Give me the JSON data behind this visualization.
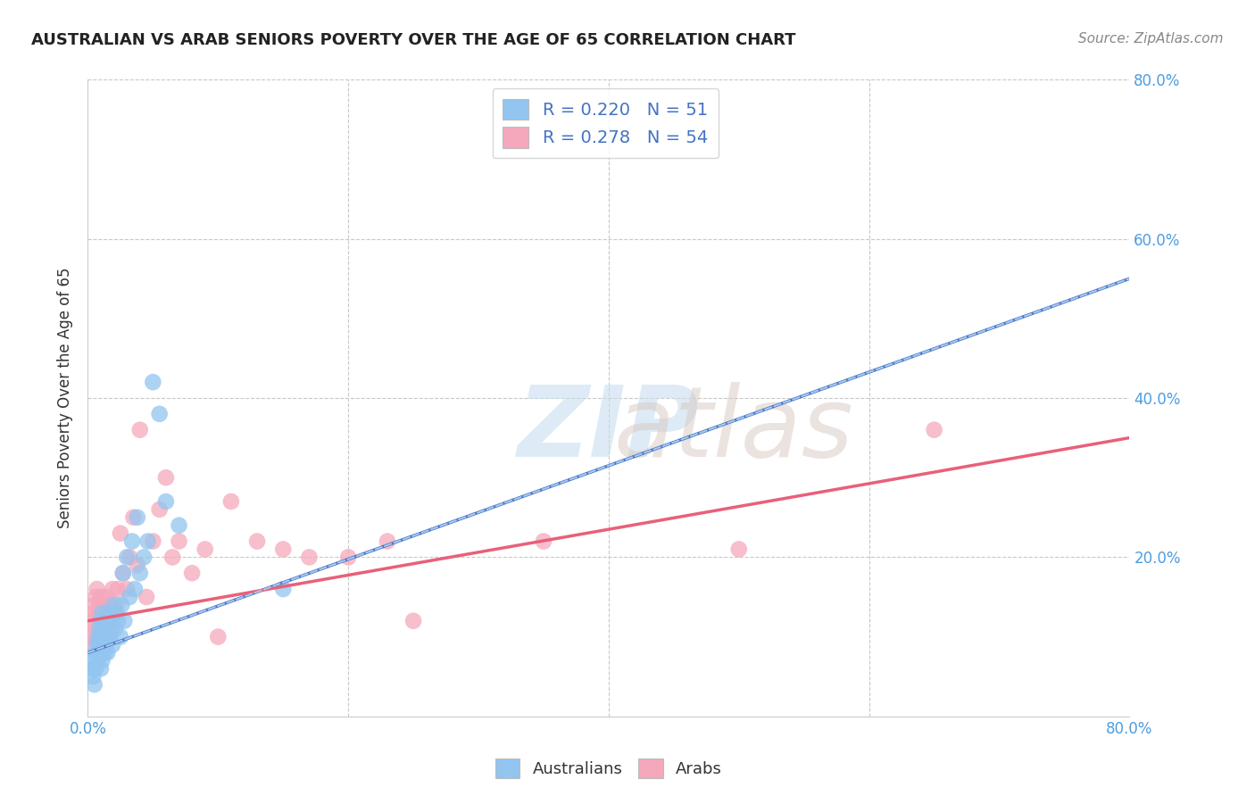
{
  "title": "AUSTRALIAN VS ARAB SENIORS POVERTY OVER THE AGE OF 65 CORRELATION CHART",
  "source": "Source: ZipAtlas.com",
  "ylabel": "Seniors Poverty Over the Age of 65",
  "xlim": [
    0.0,
    0.8
  ],
  "ylim": [
    0.0,
    0.8
  ],
  "xticks": [
    0.0,
    0.2,
    0.4,
    0.6,
    0.8
  ],
  "yticks": [
    0.2,
    0.4,
    0.6,
    0.8
  ],
  "xtick_labels": [
    "0.0%",
    "",
    "",
    "",
    "80.0%"
  ],
  "ytick_labels_right": [
    "20.0%",
    "40.0%",
    "60.0%",
    "80.0%"
  ],
  "background_color": "#ffffff",
  "grid_color": "#c8c8c8",
  "legend_R_australian": "0.220",
  "legend_N_australian": "51",
  "legend_R_arab": "0.278",
  "legend_N_arab": "54",
  "australian_color": "#92c5f0",
  "arab_color": "#f5a8bc",
  "trendline_australian_solid_color": "#4472c4",
  "trendline_australian_dashed_color": "#a8c8f0",
  "trendline_arab_color": "#e8607a",
  "australian_x": [
    0.003,
    0.004,
    0.005,
    0.005,
    0.006,
    0.006,
    0.007,
    0.007,
    0.008,
    0.008,
    0.009,
    0.009,
    0.01,
    0.01,
    0.01,
    0.01,
    0.011,
    0.011,
    0.012,
    0.012,
    0.013,
    0.013,
    0.014,
    0.014,
    0.015,
    0.015,
    0.016,
    0.017,
    0.018,
    0.019,
    0.02,
    0.021,
    0.022,
    0.023,
    0.025,
    0.026,
    0.027,
    0.028,
    0.03,
    0.032,
    0.034,
    0.036,
    0.038,
    0.04,
    0.043,
    0.046,
    0.05,
    0.055,
    0.06,
    0.07,
    0.15
  ],
  "australian_y": [
    0.06,
    0.05,
    0.07,
    0.04,
    0.08,
    0.06,
    0.09,
    0.07,
    0.1,
    0.08,
    0.11,
    0.09,
    0.12,
    0.08,
    0.1,
    0.06,
    0.13,
    0.07,
    0.09,
    0.11,
    0.08,
    0.12,
    0.09,
    0.1,
    0.11,
    0.08,
    0.13,
    0.1,
    0.12,
    0.09,
    0.14,
    0.11,
    0.13,
    0.12,
    0.1,
    0.14,
    0.18,
    0.12,
    0.2,
    0.15,
    0.22,
    0.16,
    0.25,
    0.18,
    0.2,
    0.22,
    0.42,
    0.38,
    0.27,
    0.24,
    0.16
  ],
  "arab_x": [
    0.002,
    0.003,
    0.004,
    0.005,
    0.005,
    0.006,
    0.006,
    0.007,
    0.007,
    0.008,
    0.008,
    0.009,
    0.009,
    0.01,
    0.01,
    0.011,
    0.011,
    0.012,
    0.013,
    0.014,
    0.015,
    0.016,
    0.017,
    0.018,
    0.019,
    0.02,
    0.022,
    0.023,
    0.025,
    0.027,
    0.03,
    0.032,
    0.035,
    0.038,
    0.04,
    0.045,
    0.05,
    0.055,
    0.06,
    0.065,
    0.07,
    0.08,
    0.09,
    0.1,
    0.11,
    0.13,
    0.15,
    0.17,
    0.2,
    0.23,
    0.25,
    0.35,
    0.5,
    0.65
  ],
  "arab_y": [
    0.12,
    0.1,
    0.13,
    0.09,
    0.14,
    0.11,
    0.15,
    0.1,
    0.16,
    0.12,
    0.13,
    0.11,
    0.14,
    0.12,
    0.15,
    0.1,
    0.13,
    0.11,
    0.14,
    0.15,
    0.13,
    0.12,
    0.14,
    0.11,
    0.16,
    0.13,
    0.14,
    0.16,
    0.23,
    0.18,
    0.16,
    0.2,
    0.25,
    0.19,
    0.36,
    0.15,
    0.22,
    0.26,
    0.3,
    0.2,
    0.22,
    0.18,
    0.21,
    0.1,
    0.27,
    0.22,
    0.21,
    0.2,
    0.2,
    0.22,
    0.12,
    0.22,
    0.21,
    0.36
  ],
  "trendline_aus_x0": 0.0,
  "trendline_aus_y0": 0.08,
  "trendline_aus_x1": 0.8,
  "trendline_aus_y1": 0.55,
  "trendline_arab_x0": 0.0,
  "trendline_arab_y0": 0.12,
  "trendline_arab_x1": 0.8,
  "trendline_arab_y1": 0.35
}
